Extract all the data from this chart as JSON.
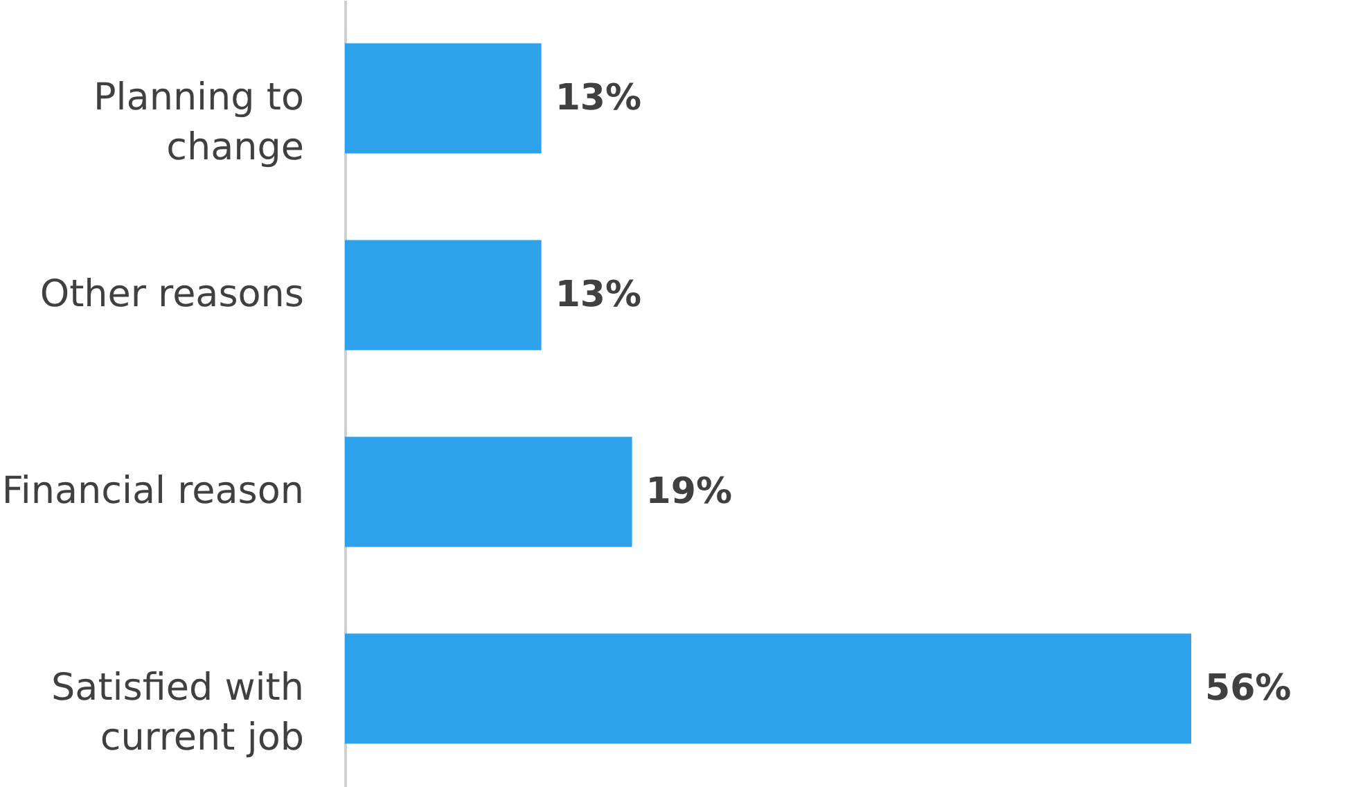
{
  "chart_data": {
    "type": "bar",
    "orientation": "horizontal",
    "categories": [
      "Planning to change",
      "Other reasons",
      "Financial reason",
      "Satisfied with current job"
    ],
    "values": [
      13,
      13,
      19,
      56
    ],
    "color": "#2ea1ec",
    "data_labels": true,
    "value_labels": [
      "13%",
      "13%",
      "19%",
      "56%"
    ]
  }
}
